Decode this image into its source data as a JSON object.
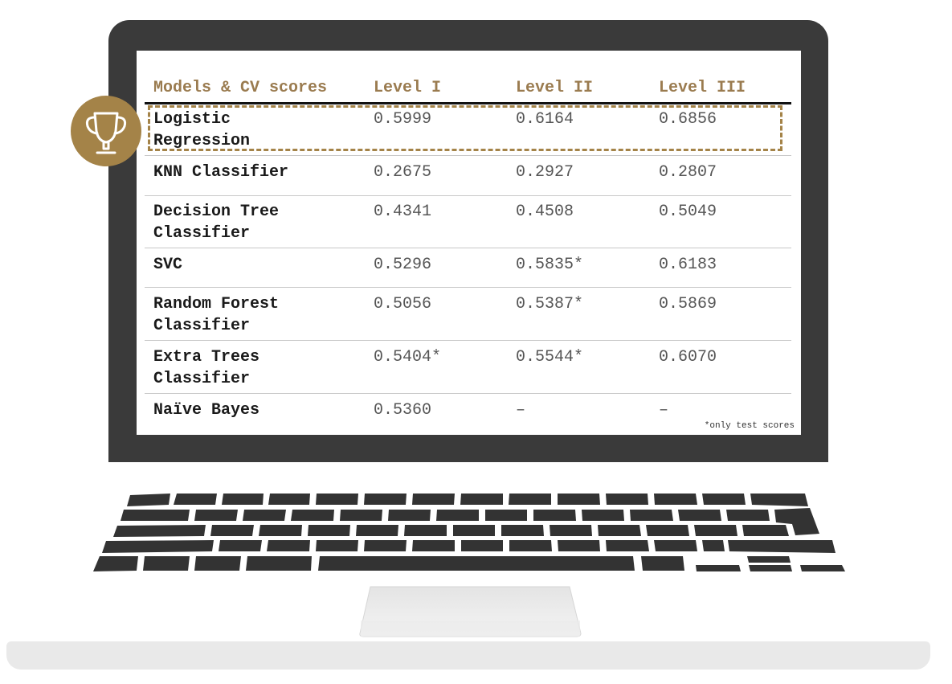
{
  "table": {
    "headers": [
      "Models & CV scores",
      "Level I",
      "Level II",
      "Level III"
    ],
    "rows": [
      {
        "model": "Logistic\nRegression",
        "level1": "0.5999",
        "level2": "0.6164",
        "level3": "0.6856"
      },
      {
        "model": "KNN Classifier",
        "level1": "0.2675",
        "level2": "0.2927",
        "level3": "0.2807"
      },
      {
        "model": "Decision Tree\nClassifier",
        "level1": "0.4341",
        "level2": "0.4508",
        "level3": "0.5049"
      },
      {
        "model": "SVC",
        "level1": "0.5296",
        "level2": "0.5835*",
        "level3": "0.6183"
      },
      {
        "model": "Random Forest\nClassifier",
        "level1": "0.5056",
        "level2": "0.5387*",
        "level3": "0.5869"
      },
      {
        "model": "Extra Trees\nClassifier",
        "level1": "0.5404*",
        "level2": "0.5544*",
        "level3": "0.6070"
      },
      {
        "model": "Naïve Bayes",
        "level1": "0.5360",
        "level2": "–",
        "level3": "–"
      }
    ],
    "footnote": "*only test scores"
  },
  "colors": {
    "accent": "#a48348",
    "header_text": "#9a7b4f",
    "bezel": "#3a3a3a",
    "keys": "#333333"
  },
  "icons": [
    "trophy-icon"
  ]
}
